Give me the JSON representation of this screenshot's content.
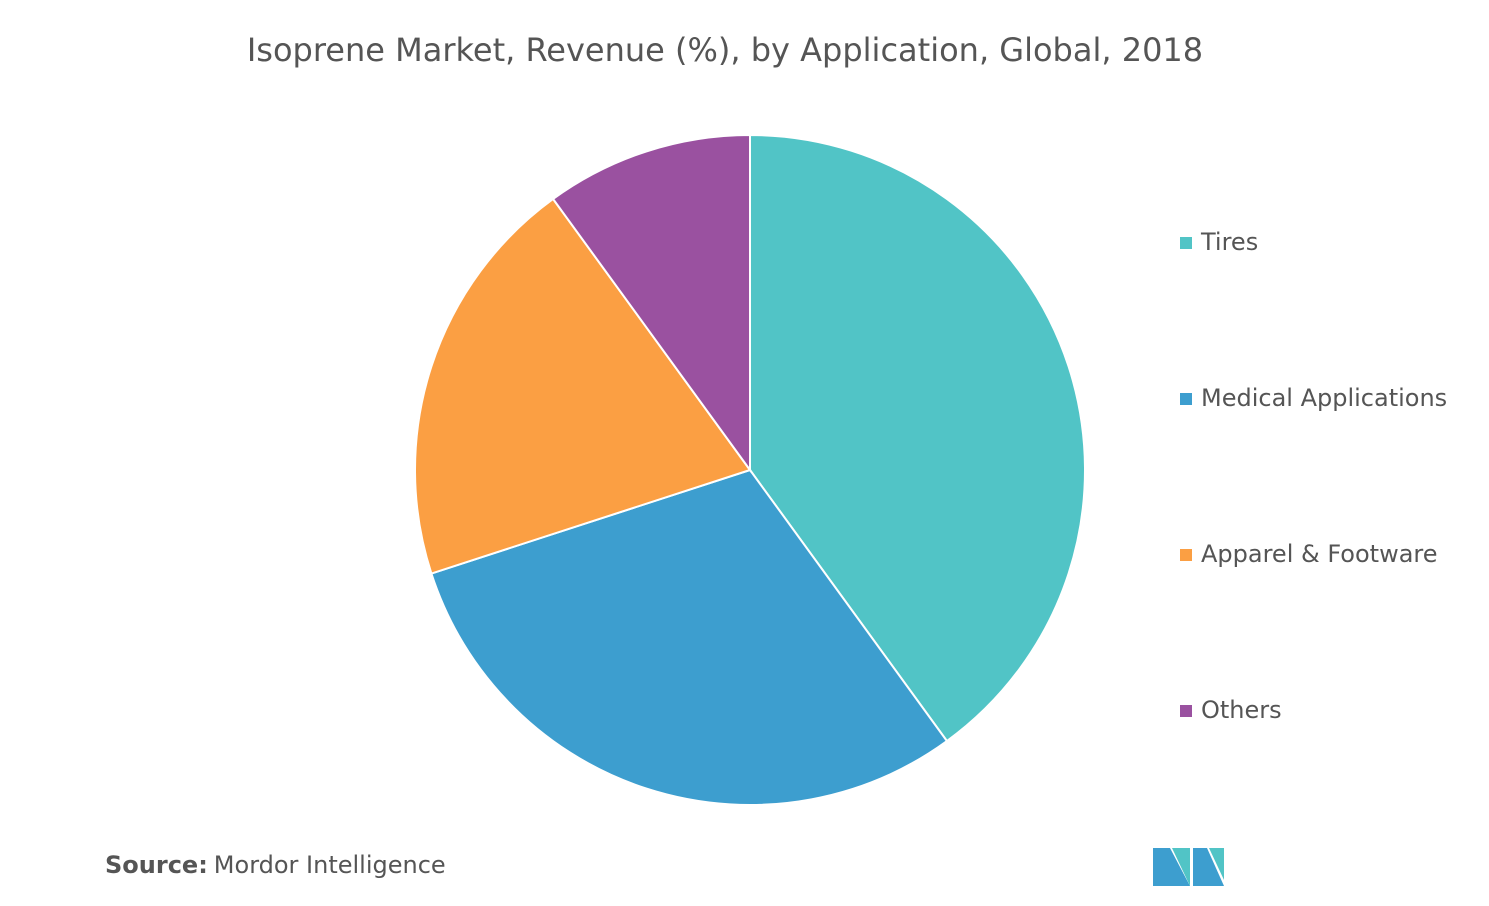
{
  "chart_data": {
    "type": "pie",
    "title": "Isoprene Market, Revenue (%), by Application, Global, 2018",
    "categories": [
      "Tires",
      "Medical Applications",
      "Apparel & Footware",
      "Others"
    ],
    "values": [
      40,
      30,
      20,
      10
    ],
    "colors": [
      "#51c4c6",
      "#3d9ecf",
      "#fb9f43",
      "#9a51a0"
    ],
    "source_label": "Source:",
    "source": "Mordor Intelligence"
  }
}
